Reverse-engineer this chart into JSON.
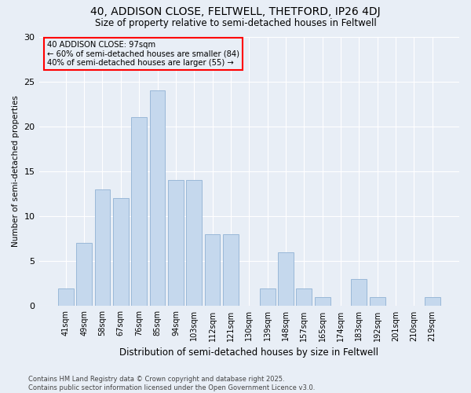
{
  "title1": "40, ADDISON CLOSE, FELTWELL, THETFORD, IP26 4DJ",
  "title2": "Size of property relative to semi-detached houses in Feltwell",
  "xlabel": "Distribution of semi-detached houses by size in Feltwell",
  "ylabel": "Number of semi-detached properties",
  "categories": [
    "41sqm",
    "49sqm",
    "58sqm",
    "67sqm",
    "76sqm",
    "85sqm",
    "94sqm",
    "103sqm",
    "112sqm",
    "121sqm",
    "130sqm",
    "139sqm",
    "148sqm",
    "157sqm",
    "165sqm",
    "174sqm",
    "183sqm",
    "192sqm",
    "201sqm",
    "210sqm",
    "219sqm"
  ],
  "values": [
    2,
    7,
    13,
    12,
    21,
    24,
    14,
    14,
    8,
    8,
    0,
    2,
    6,
    2,
    1,
    0,
    3,
    1,
    0,
    0,
    1
  ],
  "bar_color": "#c5d8ed",
  "bar_edge_color": "#9ab8d8",
  "highlight_index": 6,
  "annotation_line1": "40 ADDISON CLOSE: 97sqm",
  "annotation_line2": "← 60% of semi-detached houses are smaller (84)",
  "annotation_line3": "40% of semi-detached houses are larger (55) →",
  "footer": "Contains HM Land Registry data © Crown copyright and database right 2025.\nContains public sector information licensed under the Open Government Licence v3.0.",
  "ylim": [
    0,
    30
  ],
  "background_color": "#e8eef6",
  "grid_color": "#ffffff"
}
